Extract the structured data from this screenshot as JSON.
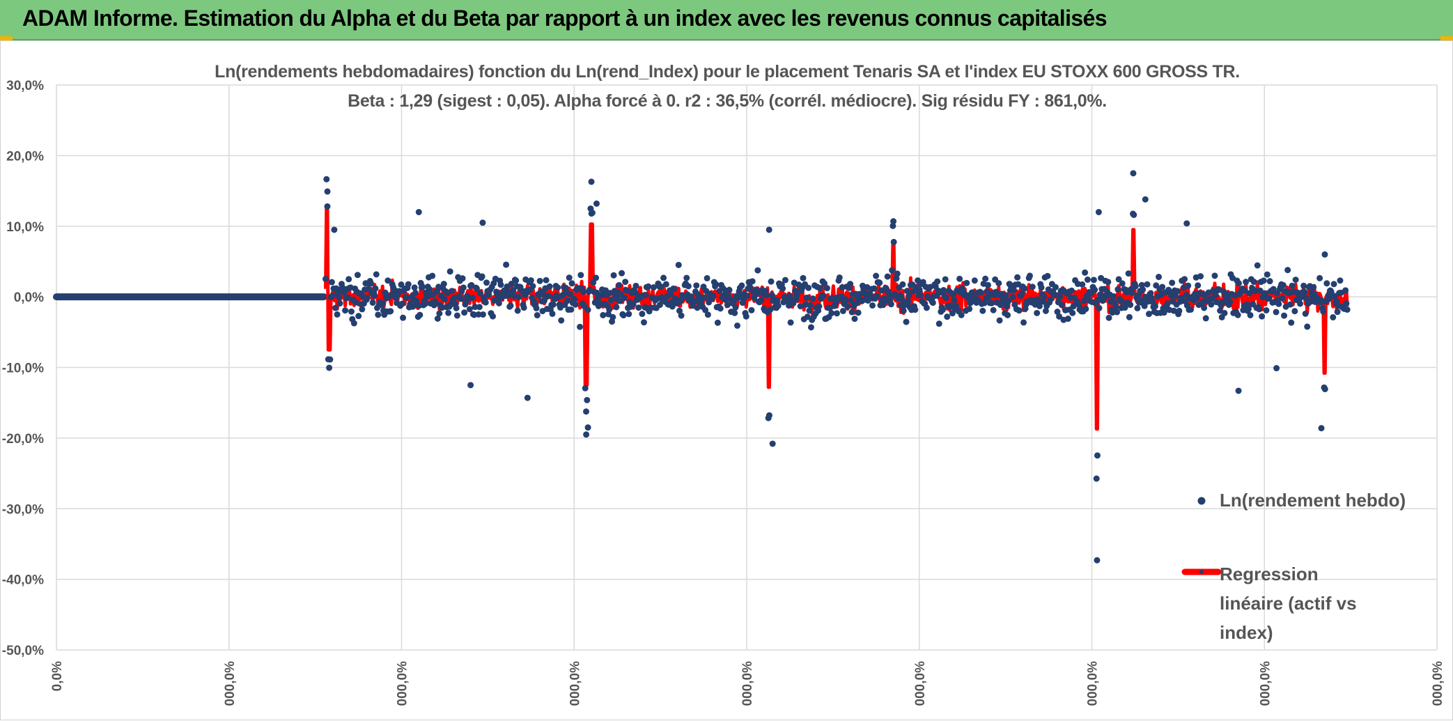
{
  "banner": {
    "title": "ADAM Informe. Estimation du Alpha et du Beta par rapport à un index avec les revenus connus capitalisés",
    "color": "#7dc87f"
  },
  "chart_data": {
    "type": "scatter",
    "title": "Ln(rendements hebdomadaires) fonction du Ln(rend_Index) pour le placement Tenaris SA et l'index EU STOXX 600 GROSS TR.",
    "subtitle": "Beta : 1,29 (sigest : 0,05). Alpha forcé à 0. r2 : 36,5% (corrél. médiocre). Sig résidu FY : 861,0%.",
    "ylim": [
      -0.5,
      0.3
    ],
    "xlim": [
      0,
      8
    ],
    "y_ticks": [
      "30,0%",
      "20,0%",
      "10,0%",
      "0,0%",
      "-10,0%",
      "-20,0%",
      "-30,0%",
      "-40,0%",
      "-50,0%"
    ],
    "x_ticks": [
      "0,0%",
      "000,0%",
      "000,0%",
      "000,0%",
      "000,0%",
      "000,0%",
      "000,0%",
      "000,0%",
      "000,0%"
    ],
    "grid": true,
    "legend_position": "right",
    "series": [
      {
        "name": "Ln(rendement hebdo)",
        "color": "#243f70",
        "style": "markers",
        "notable_points": [
          {
            "x": 1.57,
            "y": 0.128
          },
          {
            "x": 1.61,
            "y": 0.095
          },
          {
            "x": 2.1,
            "y": 0.12
          },
          {
            "x": 2.4,
            "y": -0.125
          },
          {
            "x": 2.47,
            "y": 0.105
          },
          {
            "x": 2.73,
            "y": -0.143
          },
          {
            "x": 3.07,
            "y": -0.195
          },
          {
            "x": 3.08,
            "y": -0.185
          },
          {
            "x": 3.1,
            "y": 0.163
          },
          {
            "x": 3.13,
            "y": 0.132
          },
          {
            "x": 4.13,
            "y": 0.095
          },
          {
            "x": 4.15,
            "y": -0.208
          },
          {
            "x": 4.85,
            "y": 0.107
          },
          {
            "x": 6.03,
            "y": -0.373
          },
          {
            "x": 6.04,
            "y": 0.12
          },
          {
            "x": 6.24,
            "y": 0.175
          },
          {
            "x": 6.31,
            "y": 0.138
          },
          {
            "x": 6.55,
            "y": 0.104
          },
          {
            "x": 6.85,
            "y": -0.133
          },
          {
            "x": 7.07,
            "y": -0.101
          },
          {
            "x": 7.33,
            "y": -0.186
          },
          {
            "x": 7.35,
            "y": 0.06
          }
        ]
      },
      {
        "name": "Regression linéaire (actif vs index)",
        "color": "#ff0000",
        "style": "line",
        "notable_points": [
          {
            "x": 1.57,
            "y": 0.128
          },
          {
            "x": 1.58,
            "y": -0.075
          },
          {
            "x": 3.07,
            "y": -0.125
          },
          {
            "x": 3.1,
            "y": 0.103
          },
          {
            "x": 4.13,
            "y": -0.128
          },
          {
            "x": 4.85,
            "y": 0.075
          },
          {
            "x": 6.03,
            "y": -0.187
          },
          {
            "x": 6.24,
            "y": 0.095
          },
          {
            "x": 7.35,
            "y": -0.108
          }
        ]
      }
    ],
    "flat_zero_segment": {
      "x_from": 0,
      "x_to": 1.55,
      "y": 0
    }
  }
}
